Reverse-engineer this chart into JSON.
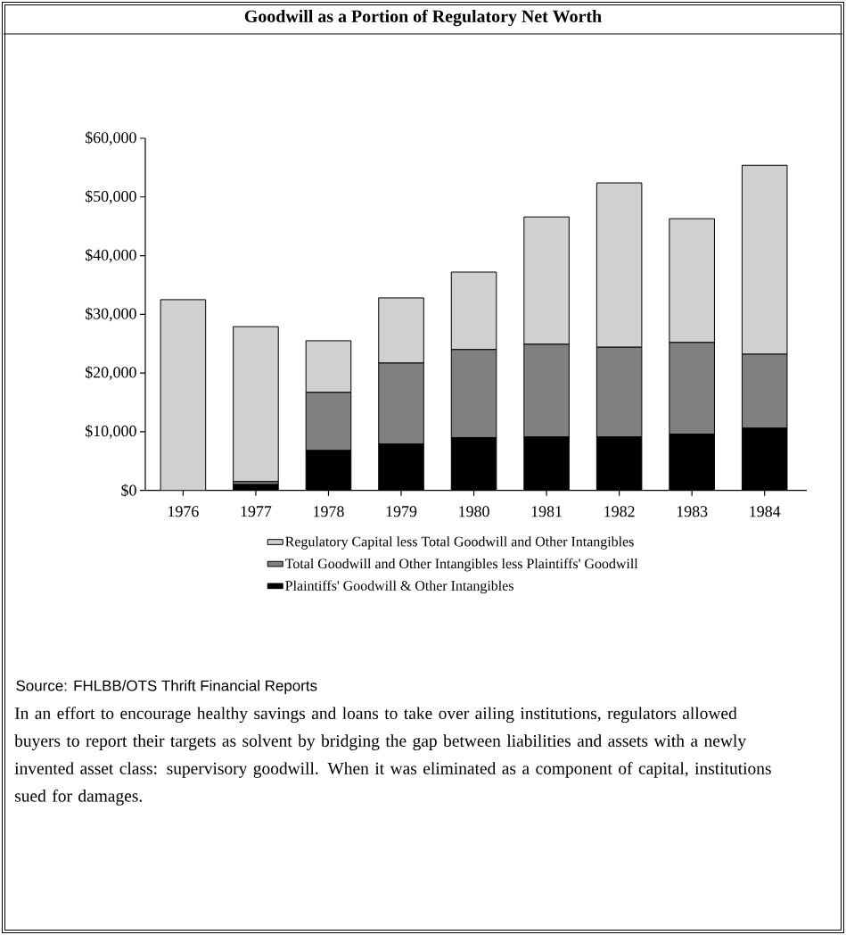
{
  "chart_data": {
    "type": "bar",
    "stacked": true,
    "title": "Goodwill as a Portion of Regulatory Net Worth",
    "categories": [
      "1976",
      "1977",
      "1978",
      "1979",
      "1980",
      "1981",
      "1982",
      "1983",
      "1984"
    ],
    "series": [
      {
        "name": "Plaintiffs' Goodwill & Other Intangibles",
        "color": "#000000",
        "values": [
          null,
          1000,
          6800,
          7900,
          9000,
          9100,
          9100,
          9600,
          10600
        ]
      },
      {
        "name": "Total Goodwill and Other Intangibles less Plaintiffs' Goodwill",
        "color": "#808080",
        "values": [
          null,
          500,
          9900,
          13800,
          15000,
          15800,
          15300,
          15600,
          12600
        ]
      },
      {
        "name": "Regulatory Capital less Total Goodwill and Other Intangibles",
        "color": "#d0d0d0",
        "values": [
          32500,
          26400,
          8800,
          11100,
          13200,
          21700,
          28000,
          21100,
          32200
        ]
      }
    ],
    "ylim": [
      0,
      60000
    ],
    "yticks": [
      {
        "value": 0,
        "label": "$0"
      },
      {
        "value": 10000,
        "label": "$10,000"
      },
      {
        "value": 20000,
        "label": "$20,000"
      },
      {
        "value": 30000,
        "label": "$30,000"
      },
      {
        "value": 40000,
        "label": "$40,000"
      },
      {
        "value": 50000,
        "label": "$50,000"
      },
      {
        "value": 60000,
        "label": "$60,000"
      }
    ],
    "legend": "bottom",
    "annotations": [
      "Source: FHLBB/OTS Thrift Financial Reports",
      "In an effort to encourage healthy savings and loans to take over ailing institutions, regulators allowed buyers to report their targets as solvent by bridging the gap between liabilities and assets with a newly invented asset class: supervisory goodwill. When it was eliminated as a component of capital, institutions sued for damages."
    ]
  }
}
